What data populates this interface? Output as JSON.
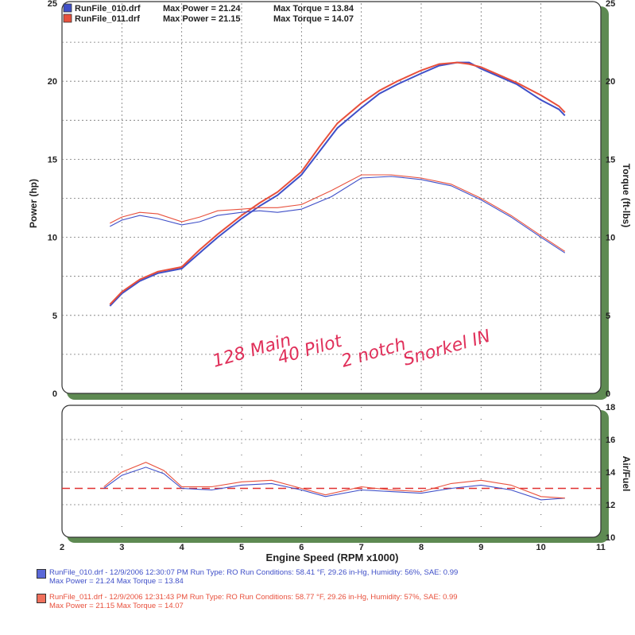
{
  "chart_data": [
    {
      "type": "line",
      "xlabel": "Engine Speed (RPM x1000)",
      "ylabel": "Power (hp)",
      "y2label": "Torque (ft-lbs)",
      "xlim": [
        2,
        11
      ],
      "xticks": [
        "2",
        "3",
        "4",
        "5",
        "6",
        "7",
        "8",
        "9",
        "10",
        "11"
      ],
      "ylim": [
        0,
        25
      ],
      "yticks": [
        "0",
        "5",
        "10",
        "15",
        "20",
        "25"
      ],
      "y2ticks": [
        "0",
        "5",
        "10",
        "15",
        "20",
        "25"
      ],
      "legend": [
        {
          "run": "RunFile_010.drf",
          "power_text": "Max Power = 21.24",
          "torque_text": "Max Torque = 13.84",
          "color": "#3f4fc8"
        },
        {
          "run": "RunFile_011.drf",
          "power_text": "Max Power = 21.15",
          "torque_text": "Max Torque = 14.07",
          "color": "#e8503c"
        }
      ],
      "legend_position": "top-left",
      "grid": true,
      "series": [
        {
          "name": "RunFile_010.drf",
          "measure": "power",
          "color": "#3f4fc8",
          "x": [
            2.8,
            3.0,
            3.3,
            3.6,
            4.0,
            4.3,
            4.6,
            5.0,
            5.3,
            5.6,
            6.0,
            6.3,
            6.6,
            7.0,
            7.3,
            7.6,
            8.0,
            8.3,
            8.6,
            8.8,
            9.0,
            9.3,
            9.6,
            10.0,
            10.3,
            10.4
          ],
          "y": [
            5.6,
            6.4,
            7.2,
            7.7,
            8.0,
            9.0,
            10.0,
            11.2,
            12.0,
            12.7,
            14.0,
            15.5,
            17.0,
            18.3,
            19.2,
            19.8,
            20.5,
            21.0,
            21.2,
            21.2,
            20.8,
            20.3,
            19.8,
            18.8,
            18.2,
            17.8
          ]
        },
        {
          "name": "RunFile_011.drf",
          "measure": "power",
          "color": "#e8503c",
          "x": [
            2.8,
            3.0,
            3.3,
            3.6,
            4.0,
            4.3,
            4.6,
            5.0,
            5.3,
            5.6,
            6.0,
            6.3,
            6.6,
            7.0,
            7.3,
            7.6,
            8.0,
            8.3,
            8.6,
            8.8,
            9.0,
            9.3,
            9.6,
            10.0,
            10.3,
            10.4
          ],
          "y": [
            5.7,
            6.5,
            7.3,
            7.8,
            8.1,
            9.2,
            10.2,
            11.4,
            12.2,
            12.9,
            14.2,
            15.8,
            17.3,
            18.6,
            19.4,
            20.0,
            20.7,
            21.1,
            21.2,
            21.1,
            20.9,
            20.4,
            19.9,
            19.1,
            18.4,
            18.0
          ]
        },
        {
          "name": "RunFile_010.drf",
          "measure": "torque",
          "color": "#3f4fc8",
          "x": [
            2.8,
            3.0,
            3.3,
            3.6,
            4.0,
            4.3,
            4.6,
            5.0,
            5.3,
            5.6,
            6.0,
            6.5,
            7.0,
            7.5,
            8.0,
            8.5,
            9.0,
            9.5,
            10.0,
            10.4
          ],
          "y": [
            10.7,
            11.1,
            11.4,
            11.2,
            10.8,
            11.0,
            11.4,
            11.6,
            11.7,
            11.6,
            11.8,
            12.6,
            13.8,
            13.9,
            13.7,
            13.3,
            12.4,
            11.3,
            10.0,
            9.0
          ]
        },
        {
          "name": "RunFile_011.drf",
          "measure": "torque",
          "color": "#e8503c",
          "x": [
            2.8,
            3.0,
            3.3,
            3.6,
            4.0,
            4.3,
            4.6,
            5.0,
            5.3,
            5.6,
            6.0,
            6.5,
            7.0,
            7.5,
            8.0,
            8.5,
            9.0,
            9.5,
            10.0,
            10.4
          ],
          "y": [
            10.9,
            11.3,
            11.6,
            11.5,
            11.0,
            11.3,
            11.7,
            11.8,
            11.9,
            11.9,
            12.1,
            13.0,
            14.0,
            14.0,
            13.8,
            13.4,
            12.5,
            11.4,
            10.1,
            9.1
          ]
        }
      ],
      "annotation": {
        "lines": [
          "128 Main",
          "40 Pilot",
          "2 notch",
          "Snorkel IN"
        ],
        "color": "#e0305a"
      }
    },
    {
      "type": "line",
      "xlabel": "Engine Speed (RPM x1000)",
      "y2label": "Air/Fuel",
      "xlim": [
        2,
        11
      ],
      "xticks": [
        "2",
        "3",
        "4",
        "5",
        "6",
        "7",
        "8",
        "9",
        "10",
        "11"
      ],
      "ylim": [
        10,
        18
      ],
      "y2ticks": [
        "10",
        "12",
        "14",
        "16",
        "18"
      ],
      "reference_line": {
        "y": 13.0,
        "color": "#e03030",
        "style": "dashed"
      },
      "grid": true,
      "series": [
        {
          "name": "RunFile_010.drf",
          "color": "#3f4fc8",
          "x": [
            2.7,
            3.0,
            3.4,
            3.7,
            4.0,
            4.5,
            5.0,
            5.5,
            6.0,
            6.4,
            7.0,
            7.5,
            8.0,
            8.5,
            9.0,
            9.5,
            10.0,
            10.4
          ],
          "y": [
            13.0,
            13.8,
            14.3,
            13.9,
            13.0,
            12.9,
            13.2,
            13.3,
            12.9,
            12.5,
            12.9,
            12.8,
            12.7,
            13.0,
            13.2,
            12.9,
            12.3,
            12.4
          ]
        },
        {
          "name": "RunFile_011.drf",
          "color": "#e8503c",
          "x": [
            2.7,
            3.0,
            3.4,
            3.7,
            4.0,
            4.5,
            5.0,
            5.5,
            6.0,
            6.4,
            7.0,
            7.5,
            8.0,
            8.5,
            9.0,
            9.5,
            10.0,
            10.4
          ],
          "y": [
            13.1,
            14.0,
            14.6,
            14.1,
            13.1,
            13.1,
            13.4,
            13.5,
            13.0,
            12.6,
            13.1,
            12.9,
            12.8,
            13.3,
            13.5,
            13.2,
            12.5,
            12.4
          ]
        }
      ]
    }
  ],
  "footer": [
    {
      "line1": "RunFile_010.drf - 12/9/2006 12:30:07 PM  Run Type: RO  Run Conditions: 58.41 °F, 29.26 in-Hg,  Humidity:  56%, SAE: 0.99",
      "line2": "Max Power = 21.24  Max Torque = 13.84",
      "color": "#3f4fc8",
      "swatch": "#5a68d8"
    },
    {
      "line1": "RunFile_011.drf - 12/9/2006 12:31:43 PM  Run Type: RO  Run Conditions: 58.77 °F, 29.26 in-Hg,  Humidity:  57%, SAE: 0.99",
      "line2": "Max Power = 21.15  Max Torque = 14.07",
      "color": "#e8503c",
      "swatch": "#f0705c"
    }
  ]
}
